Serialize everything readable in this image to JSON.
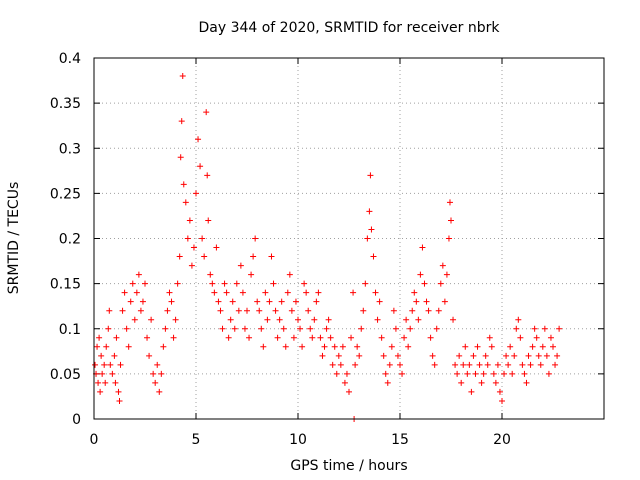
{
  "chart_data": {
    "type": "scatter",
    "title": "Day 344 of 2020, SRMTID for receiver nbrk",
    "xlabel": "GPS time / hours",
    "ylabel": "SRMTID / TECUs",
    "xlim": [
      0,
      25
    ],
    "ylim": [
      0,
      0.4
    ],
    "xticks": [
      "0",
      "5",
      "10",
      "15",
      "20"
    ],
    "yticks": [
      "0",
      "0.05",
      "0.1",
      "0.15",
      "0.2",
      "0.25",
      "0.3",
      "0.35",
      "0.4"
    ],
    "grid": true,
    "marker": "plus",
    "color": "#ff0000",
    "series": [
      {
        "name": "SRMTID",
        "points": [
          [
            0.05,
            0.06
          ],
          [
            0.1,
            0.05
          ],
          [
            0.15,
            0.08
          ],
          [
            0.2,
            0.04
          ],
          [
            0.25,
            0.09
          ],
          [
            0.3,
            0.03
          ],
          [
            0.35,
            0.07
          ],
          [
            0.4,
            0.05
          ],
          [
            0.5,
            0.06
          ],
          [
            0.55,
            0.04
          ],
          [
            0.6,
            0.08
          ],
          [
            0.7,
            0.1
          ],
          [
            0.75,
            0.12
          ],
          [
            0.8,
            0.06
          ],
          [
            0.9,
            0.05
          ],
          [
            1.0,
            0.07
          ],
          [
            1.05,
            0.04
          ],
          [
            1.1,
            0.09
          ],
          [
            1.2,
            0.03
          ],
          [
            1.25,
            0.02
          ],
          [
            1.3,
            0.06
          ],
          [
            1.4,
            0.12
          ],
          [
            1.5,
            0.14
          ],
          [
            1.6,
            0.1
          ],
          [
            1.7,
            0.08
          ],
          [
            1.8,
            0.13
          ],
          [
            1.9,
            0.15
          ],
          [
            2.0,
            0.11
          ],
          [
            2.1,
            0.14
          ],
          [
            2.2,
            0.16
          ],
          [
            2.3,
            0.12
          ],
          [
            2.4,
            0.13
          ],
          [
            2.5,
            0.15
          ],
          [
            2.6,
            0.09
          ],
          [
            2.7,
            0.07
          ],
          [
            2.8,
            0.11
          ],
          [
            2.9,
            0.05
          ],
          [
            3.0,
            0.04
          ],
          [
            3.1,
            0.06
          ],
          [
            3.2,
            0.03
          ],
          [
            3.3,
            0.05
          ],
          [
            3.4,
            0.08
          ],
          [
            3.5,
            0.1
          ],
          [
            3.6,
            0.12
          ],
          [
            3.7,
            0.14
          ],
          [
            3.8,
            0.13
          ],
          [
            3.9,
            0.09
          ],
          [
            4.0,
            0.11
          ],
          [
            4.1,
            0.15
          ],
          [
            4.2,
            0.18
          ],
          [
            4.25,
            0.29
          ],
          [
            4.3,
            0.33
          ],
          [
            4.35,
            0.38
          ],
          [
            4.4,
            0.26
          ],
          [
            4.5,
            0.24
          ],
          [
            4.6,
            0.2
          ],
          [
            4.7,
            0.22
          ],
          [
            4.8,
            0.17
          ],
          [
            4.9,
            0.19
          ],
          [
            5.0,
            0.25
          ],
          [
            5.1,
            0.31
          ],
          [
            5.2,
            0.28
          ],
          [
            5.3,
            0.2
          ],
          [
            5.4,
            0.18
          ],
          [
            5.5,
            0.34
          ],
          [
            5.55,
            0.27
          ],
          [
            5.6,
            0.22
          ],
          [
            5.7,
            0.16
          ],
          [
            5.8,
            0.15
          ],
          [
            5.9,
            0.14
          ],
          [
            6.0,
            0.19
          ],
          [
            6.1,
            0.13
          ],
          [
            6.2,
            0.12
          ],
          [
            6.3,
            0.1
          ],
          [
            6.4,
            0.15
          ],
          [
            6.5,
            0.14
          ],
          [
            6.6,
            0.09
          ],
          [
            6.7,
            0.11
          ],
          [
            6.8,
            0.13
          ],
          [
            6.9,
            0.1
          ],
          [
            7.0,
            0.15
          ],
          [
            7.1,
            0.12
          ],
          [
            7.2,
            0.17
          ],
          [
            7.3,
            0.14
          ],
          [
            7.4,
            0.1
          ],
          [
            7.5,
            0.12
          ],
          [
            7.6,
            0.09
          ],
          [
            7.7,
            0.16
          ],
          [
            7.8,
            0.18
          ],
          [
            7.9,
            0.2
          ],
          [
            8.0,
            0.13
          ],
          [
            8.1,
            0.12
          ],
          [
            8.2,
            0.1
          ],
          [
            8.3,
            0.08
          ],
          [
            8.4,
            0.14
          ],
          [
            8.5,
            0.11
          ],
          [
            8.6,
            0.13
          ],
          [
            8.7,
            0.18
          ],
          [
            8.8,
            0.15
          ],
          [
            8.9,
            0.12
          ],
          [
            9.0,
            0.09
          ],
          [
            9.1,
            0.11
          ],
          [
            9.2,
            0.13
          ],
          [
            9.3,
            0.1
          ],
          [
            9.4,
            0.08
          ],
          [
            9.5,
            0.14
          ],
          [
            9.6,
            0.16
          ],
          [
            9.7,
            0.12
          ],
          [
            9.8,
            0.09
          ],
          [
            9.9,
            0.13
          ],
          [
            10.0,
            0.11
          ],
          [
            10.1,
            0.1
          ],
          [
            10.2,
            0.08
          ],
          [
            10.3,
            0.15
          ],
          [
            10.4,
            0.14
          ],
          [
            10.5,
            0.12
          ],
          [
            10.6,
            0.1
          ],
          [
            10.7,
            0.09
          ],
          [
            10.8,
            0.11
          ],
          [
            10.9,
            0.13
          ],
          [
            11.0,
            0.14
          ],
          [
            11.1,
            0.09
          ],
          [
            11.2,
            0.07
          ],
          [
            11.3,
            0.08
          ],
          [
            11.4,
            0.1
          ],
          [
            11.5,
            0.11
          ],
          [
            11.6,
            0.09
          ],
          [
            11.7,
            0.06
          ],
          [
            11.8,
            0.08
          ],
          [
            11.9,
            0.05
          ],
          [
            12.0,
            0.07
          ],
          [
            12.1,
            0.06
          ],
          [
            12.2,
            0.08
          ],
          [
            12.3,
            0.04
          ],
          [
            12.4,
            0.05
          ],
          [
            12.5,
            0.03
          ],
          [
            12.6,
            0.09
          ],
          [
            12.7,
            0.14
          ],
          [
            12.75,
            0.0
          ],
          [
            12.8,
            0.06
          ],
          [
            12.9,
            0.08
          ],
          [
            13.0,
            0.07
          ],
          [
            13.1,
            0.1
          ],
          [
            13.2,
            0.12
          ],
          [
            13.3,
            0.15
          ],
          [
            13.4,
            0.2
          ],
          [
            13.5,
            0.23
          ],
          [
            13.55,
            0.27
          ],
          [
            13.6,
            0.21
          ],
          [
            13.7,
            0.18
          ],
          [
            13.8,
            0.14
          ],
          [
            13.9,
            0.11
          ],
          [
            14.0,
            0.13
          ],
          [
            14.1,
            0.09
          ],
          [
            14.2,
            0.07
          ],
          [
            14.3,
            0.05
          ],
          [
            14.4,
            0.04
          ],
          [
            14.5,
            0.06
          ],
          [
            14.6,
            0.08
          ],
          [
            14.7,
            0.12
          ],
          [
            14.8,
            0.1
          ],
          [
            14.9,
            0.07
          ],
          [
            15.0,
            0.06
          ],
          [
            15.1,
            0.05
          ],
          [
            15.2,
            0.09
          ],
          [
            15.3,
            0.11
          ],
          [
            15.4,
            0.08
          ],
          [
            15.5,
            0.1
          ],
          [
            15.6,
            0.12
          ],
          [
            15.7,
            0.14
          ],
          [
            15.8,
            0.13
          ],
          [
            15.9,
            0.11
          ],
          [
            16.0,
            0.16
          ],
          [
            16.1,
            0.19
          ],
          [
            16.2,
            0.15
          ],
          [
            16.3,
            0.13
          ],
          [
            16.4,
            0.12
          ],
          [
            16.5,
            0.09
          ],
          [
            16.6,
            0.07
          ],
          [
            16.7,
            0.06
          ],
          [
            16.8,
            0.1
          ],
          [
            16.9,
            0.12
          ],
          [
            17.0,
            0.15
          ],
          [
            17.1,
            0.17
          ],
          [
            17.2,
            0.13
          ],
          [
            17.3,
            0.16
          ],
          [
            17.4,
            0.2
          ],
          [
            17.45,
            0.24
          ],
          [
            17.5,
            0.22
          ],
          [
            17.6,
            0.11
          ],
          [
            17.7,
            0.06
          ],
          [
            17.8,
            0.05
          ],
          [
            17.9,
            0.07
          ],
          [
            18.0,
            0.04
          ],
          [
            18.1,
            0.06
          ],
          [
            18.2,
            0.08
          ],
          [
            18.3,
            0.05
          ],
          [
            18.4,
            0.06
          ],
          [
            18.5,
            0.03
          ],
          [
            18.6,
            0.07
          ],
          [
            18.7,
            0.05
          ],
          [
            18.8,
            0.08
          ],
          [
            18.9,
            0.06
          ],
          [
            19.0,
            0.04
          ],
          [
            19.1,
            0.05
          ],
          [
            19.2,
            0.07
          ],
          [
            19.3,
            0.06
          ],
          [
            19.4,
            0.09
          ],
          [
            19.5,
            0.08
          ],
          [
            19.6,
            0.05
          ],
          [
            19.7,
            0.04
          ],
          [
            19.8,
            0.06
          ],
          [
            19.9,
            0.03
          ],
          [
            20.0,
            0.02
          ],
          [
            20.1,
            0.05
          ],
          [
            20.2,
            0.07
          ],
          [
            20.3,
            0.06
          ],
          [
            20.4,
            0.08
          ],
          [
            20.5,
            0.05
          ],
          [
            20.6,
            0.07
          ],
          [
            20.7,
            0.1
          ],
          [
            20.8,
            0.11
          ],
          [
            20.9,
            0.09
          ],
          [
            21.0,
            0.06
          ],
          [
            21.1,
            0.05
          ],
          [
            21.2,
            0.04
          ],
          [
            21.3,
            0.07
          ],
          [
            21.4,
            0.06
          ],
          [
            21.5,
            0.08
          ],
          [
            21.6,
            0.1
          ],
          [
            21.7,
            0.09
          ],
          [
            21.8,
            0.07
          ],
          [
            21.9,
            0.06
          ],
          [
            22.0,
            0.08
          ],
          [
            22.1,
            0.1
          ],
          [
            22.2,
            0.07
          ],
          [
            22.3,
            0.05
          ],
          [
            22.4,
            0.09
          ],
          [
            22.5,
            0.08
          ],
          [
            22.6,
            0.06
          ],
          [
            22.7,
            0.07
          ],
          [
            22.8,
            0.1
          ]
        ]
      }
    ]
  }
}
